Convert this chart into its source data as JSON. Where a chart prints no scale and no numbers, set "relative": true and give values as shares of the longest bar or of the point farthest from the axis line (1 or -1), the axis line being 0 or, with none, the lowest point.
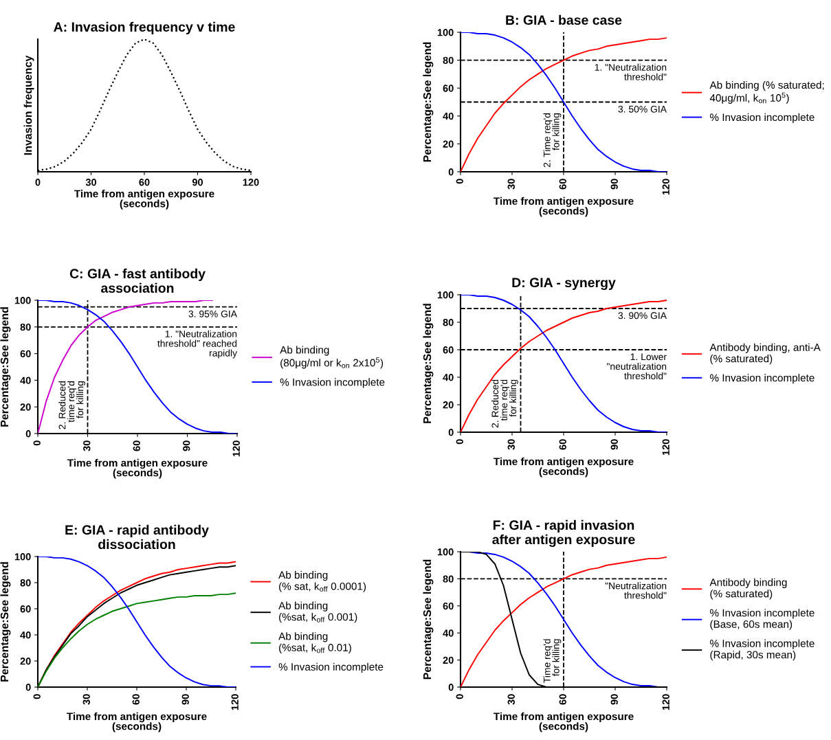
{
  "chart_data": [
    {
      "type": "line",
      "title": "A: Invasion frequency v time",
      "xlabel": "Time from antigen exposure\n(seconds)",
      "ylabel": "Invasion frequency",
      "relative": true,
      "tick_labels": "x",
      "xlim": [
        0,
        120
      ],
      "xticks": [
        0,
        30,
        60,
        90,
        120
      ],
      "grid": false,
      "legend": false,
      "marker": "none",
      "line_style": "dotted",
      "x": [
        0,
        5,
        10,
        15,
        20,
        25,
        30,
        35,
        40,
        45,
        50,
        55,
        60,
        65,
        70,
        75,
        80,
        85,
        90,
        95,
        100,
        105,
        110,
        115,
        120
      ],
      "series": [
        {
          "color": "#000000",
          "values": [
            0.01,
            0.02,
            0.04,
            0.08,
            0.14,
            0.22,
            0.32,
            0.46,
            0.61,
            0.75,
            0.88,
            0.97,
            1,
            0.97,
            0.88,
            0.75,
            0.61,
            0.46,
            0.32,
            0.22,
            0.14,
            0.08,
            0.04,
            0.02,
            0.01
          ]
        }
      ]
    },
    {
      "type": "line",
      "title": "B: GIA - base case",
      "xlabel": "Time from antigen exposure\n(seconds)",
      "ylabel": "Percentage:See legend",
      "xlim": [
        0,
        120
      ],
      "xticks": [
        0,
        30,
        60,
        90,
        120
      ],
      "ylim": [
        0,
        100
      ],
      "yticks": [
        0,
        20,
        40,
        60,
        80,
        100
      ],
      "grid": false,
      "legend": "right",
      "marker": "none",
      "line_style": "solid",
      "x": [
        0,
        5,
        10,
        15,
        20,
        25,
        30,
        35,
        40,
        45,
        50,
        55,
        60,
        65,
        70,
        75,
        80,
        85,
        90,
        95,
        100,
        105,
        110,
        115,
        120
      ],
      "series": [
        {
          "name": "Ab binding (% saturated;\n40μg/ml, k$_{on}$ 10$^{5}$)",
          "color": "#ff0000",
          "values": [
            0,
            13,
            24,
            33,
            42,
            49,
            55,
            61,
            66,
            70,
            74,
            77,
            80,
            83,
            85,
            87,
            88,
            90,
            91,
            92,
            93,
            94,
            95,
            95,
            96
          ]
        },
        {
          "name": "% Invasion incomplete",
          "color": "#0000ff",
          "values": [
            100,
            100,
            99,
            99,
            98,
            96,
            93,
            89,
            84,
            77,
            69,
            60,
            50,
            40,
            31,
            23,
            16,
            11,
            7,
            4,
            2,
            1,
            1,
            0,
            0
          ]
        }
      ],
      "ref_lines": [
        {
          "axis": "y",
          "value": 80,
          "label": "1. \"Neutralization\nthreshold\"",
          "color": "#000000",
          "line_style": "dashed"
        },
        {
          "axis": "y",
          "value": 50,
          "label": "3. 50% GIA",
          "color": "#000000",
          "line_style": "dashed"
        },
        {
          "axis": "x",
          "value": 60,
          "label": "2. Time req'd\nfor killing",
          "color": "#000000",
          "line_style": "dashed"
        }
      ]
    },
    {
      "type": "line",
      "title": "C: GIA - fast antibody\nassociation",
      "xlabel": "Time from antigen exposure\n(seconds)",
      "ylabel": "Percentage:See legend",
      "xlim": [
        0,
        120
      ],
      "xticks": [
        0,
        30,
        60,
        90,
        120
      ],
      "ylim": [
        0,
        100
      ],
      "yticks": [
        0,
        20,
        40,
        60,
        80,
        100
      ],
      "grid": false,
      "legend": "right",
      "marker": "none",
      "line_style": "solid",
      "x": [
        0,
        5,
        10,
        15,
        20,
        25,
        30,
        35,
        40,
        45,
        50,
        55,
        60,
        65,
        70,
        75,
        80,
        85,
        90,
        95,
        100,
        105,
        110,
        115,
        120
      ],
      "series": [
        {
          "name": "Ab binding\n(80μg/ml or k$_{on}$ 2x10$^{5}$)",
          "color": "#cc00cc",
          "x": [
            0,
            5,
            10,
            15,
            20,
            25,
            30,
            35,
            40,
            45,
            50,
            55,
            60,
            65,
            70,
            75,
            80,
            85,
            90,
            95,
            100,
            105
          ],
          "values": [
            0,
            24,
            42,
            55,
            66,
            74,
            80,
            85,
            88,
            91,
            93,
            95,
            96,
            97,
            98,
            98,
            99,
            99,
            99,
            99,
            100,
            100
          ]
        },
        {
          "name": "% Invasion incomplete",
          "color": "#0000ff",
          "values": [
            100,
            100,
            99,
            99,
            98,
            96,
            93,
            89,
            84,
            77,
            69,
            60,
            50,
            40,
            31,
            23,
            16,
            11,
            7,
            4,
            2,
            1,
            1,
            0,
            0
          ]
        }
      ],
      "ref_lines": [
        {
          "axis": "y",
          "value": 95,
          "label": "3. 95% GIA",
          "color": "#000000",
          "line_style": "dashed"
        },
        {
          "axis": "y",
          "value": 80,
          "label": "1. \"Neutralization\nthreshold\" reached\nrapidly",
          "color": "#000000",
          "line_style": "dashed"
        },
        {
          "axis": "x",
          "value": 30,
          "label": "2. Reduced\ntime req'd\nfor killing",
          "color": "#000000",
          "line_style": "dashed"
        }
      ]
    },
    {
      "type": "line",
      "title": "D: GIA - synergy",
      "xlabel": "Time from antigen exposure\n(seconds)",
      "ylabel": "Percentage:See legend",
      "xlim": [
        0,
        120
      ],
      "xticks": [
        0,
        30,
        60,
        90,
        120
      ],
      "ylim": [
        0,
        100
      ],
      "yticks": [
        0,
        20,
        40,
        60,
        80,
        100
      ],
      "grid": false,
      "legend": "right",
      "marker": "none",
      "line_style": "solid",
      "x": [
        0,
        5,
        10,
        15,
        20,
        25,
        30,
        35,
        40,
        45,
        50,
        55,
        60,
        65,
        70,
        75,
        80,
        85,
        90,
        95,
        100,
        105,
        110,
        115,
        120
      ],
      "series": [
        {
          "name": "Antibody binding, anti-A\n(% saturated)",
          "color": "#ff0000",
          "values": [
            0,
            13,
            24,
            33,
            42,
            49,
            55,
            61,
            66,
            70,
            74,
            77,
            80,
            83,
            85,
            87,
            88,
            90,
            91,
            92,
            93,
            94,
            95,
            95,
            96
          ]
        },
        {
          "name": "% Invasion incomplete",
          "color": "#0000ff",
          "values": [
            100,
            100,
            99,
            99,
            98,
            96,
            93,
            89,
            84,
            77,
            69,
            60,
            50,
            40,
            31,
            23,
            16,
            11,
            7,
            4,
            2,
            1,
            1,
            0,
            0
          ]
        }
      ],
      "ref_lines": [
        {
          "axis": "y",
          "value": 90,
          "label": "3. 90% GIA",
          "color": "#000000",
          "line_style": "dashed"
        },
        {
          "axis": "y",
          "value": 60,
          "label": "1. Lower\n\"neutralization\nthreshold\"",
          "color": "#000000",
          "line_style": "dashed"
        },
        {
          "axis": "x",
          "value": 35,
          "label": "2. Reduced\ntime req'd\nfor killing",
          "color": "#000000",
          "line_style": "dashed"
        }
      ]
    },
    {
      "type": "line",
      "title": "E: GIA - rapid antibody\ndissociation",
      "xlabel": "Time from antigen exposure\n(seconds)",
      "ylabel": "Percentage:See legend",
      "xlim": [
        0,
        120
      ],
      "xticks": [
        0,
        30,
        60,
        90,
        120
      ],
      "ylim": [
        0,
        100
      ],
      "yticks": [
        0,
        20,
        40,
        60,
        80,
        100
      ],
      "grid": false,
      "legend": "right",
      "marker": "none",
      "line_style": "solid",
      "x": [
        0,
        5,
        10,
        15,
        20,
        25,
        30,
        35,
        40,
        45,
        50,
        55,
        60,
        65,
        70,
        75,
        80,
        85,
        90,
        95,
        100,
        105,
        110,
        115,
        120
      ],
      "series": [
        {
          "name": "Ab binding\n(% sat, k$_{off}$ 0.0001)",
          "color": "#ff0000",
          "values": [
            0,
            13,
            24,
            33,
            42,
            49,
            55,
            61,
            66,
            70,
            74,
            77,
            80,
            83,
            85,
            87,
            88,
            90,
            91,
            92,
            93,
            94,
            95,
            95,
            96
          ]
        },
        {
          "name": "Ab binding\n(%sat, k$_{off}$ 0.001)",
          "color": "#000000",
          "values": [
            0,
            13,
            23,
            32,
            41,
            47,
            54,
            59,
            64,
            68,
            72,
            75,
            78,
            80,
            82,
            84,
            86,
            87,
            88,
            89,
            90,
            91,
            92,
            92,
            93
          ]
        },
        {
          "name": "Ab binding\n(%sat, k$_{off}$ 0.01)",
          "color": "#008000",
          "values": [
            0,
            12,
            22,
            30,
            37,
            43,
            48,
            52,
            55,
            58,
            60,
            62,
            64,
            65,
            66,
            67,
            68,
            69,
            69,
            70,
            70,
            70,
            71,
            71,
            72
          ]
        },
        {
          "name": "% Invasion incomplete",
          "color": "#0000ff",
          "values": [
            100,
            100,
            99,
            99,
            98,
            96,
            93,
            89,
            84,
            77,
            69,
            60,
            50,
            40,
            31,
            23,
            16,
            11,
            7,
            4,
            2,
            1,
            1,
            0,
            0
          ]
        }
      ]
    },
    {
      "type": "line",
      "title": "F: GIA - rapid invasion\nafter antigen exposure",
      "xlabel": "Time from antigen exposure\n(seconds)",
      "ylabel": "Percentage:See legend",
      "xlim": [
        0,
        120
      ],
      "xticks": [
        0,
        30,
        60,
        90,
        120
      ],
      "ylim": [
        0,
        100
      ],
      "yticks": [
        0,
        20,
        40,
        60,
        80,
        100
      ],
      "grid": false,
      "legend": "right",
      "marker": "none",
      "line_style": "solid",
      "x": [
        0,
        5,
        10,
        15,
        20,
        25,
        30,
        35,
        40,
        45,
        50,
        55,
        60,
        65,
        70,
        75,
        80,
        85,
        90,
        95,
        100,
        105,
        110,
        115,
        120
      ],
      "series": [
        {
          "name": "Antibody binding\n(% saturated)",
          "color": "#ff0000",
          "values": [
            0,
            13,
            24,
            33,
            42,
            49,
            55,
            61,
            66,
            70,
            74,
            77,
            80,
            83,
            85,
            87,
            88,
            90,
            91,
            92,
            93,
            94,
            95,
            95,
            96
          ]
        },
        {
          "name": "% Invasion incomplete\n(Base, 60s mean)",
          "color": "#0000ff",
          "values": [
            100,
            100,
            99,
            99,
            98,
            96,
            93,
            89,
            84,
            77,
            69,
            60,
            50,
            40,
            31,
            23,
            16,
            11,
            7,
            4,
            2,
            1,
            1,
            0,
            0
          ]
        },
        {
          "name": "% Invasion incomplete\n(Rapid, 30s mean)",
          "color": "#000000",
          "values": [
            100,
            100,
            100,
            98,
            91,
            75,
            50,
            25,
            9,
            2,
            0,
            0,
            0,
            0,
            0,
            0,
            0,
            0,
            0,
            0,
            0,
            0,
            0,
            0,
            0
          ]
        }
      ],
      "ref_lines": [
        {
          "axis": "y",
          "value": 80,
          "label": "\"Neutralization\nthreshold\"",
          "color": "#000000",
          "line_style": "dashed"
        },
        {
          "axis": "x",
          "value": 60,
          "label": "Time req'd\nfor killing",
          "color": "#000000",
          "line_style": "dashed"
        }
      ]
    }
  ]
}
